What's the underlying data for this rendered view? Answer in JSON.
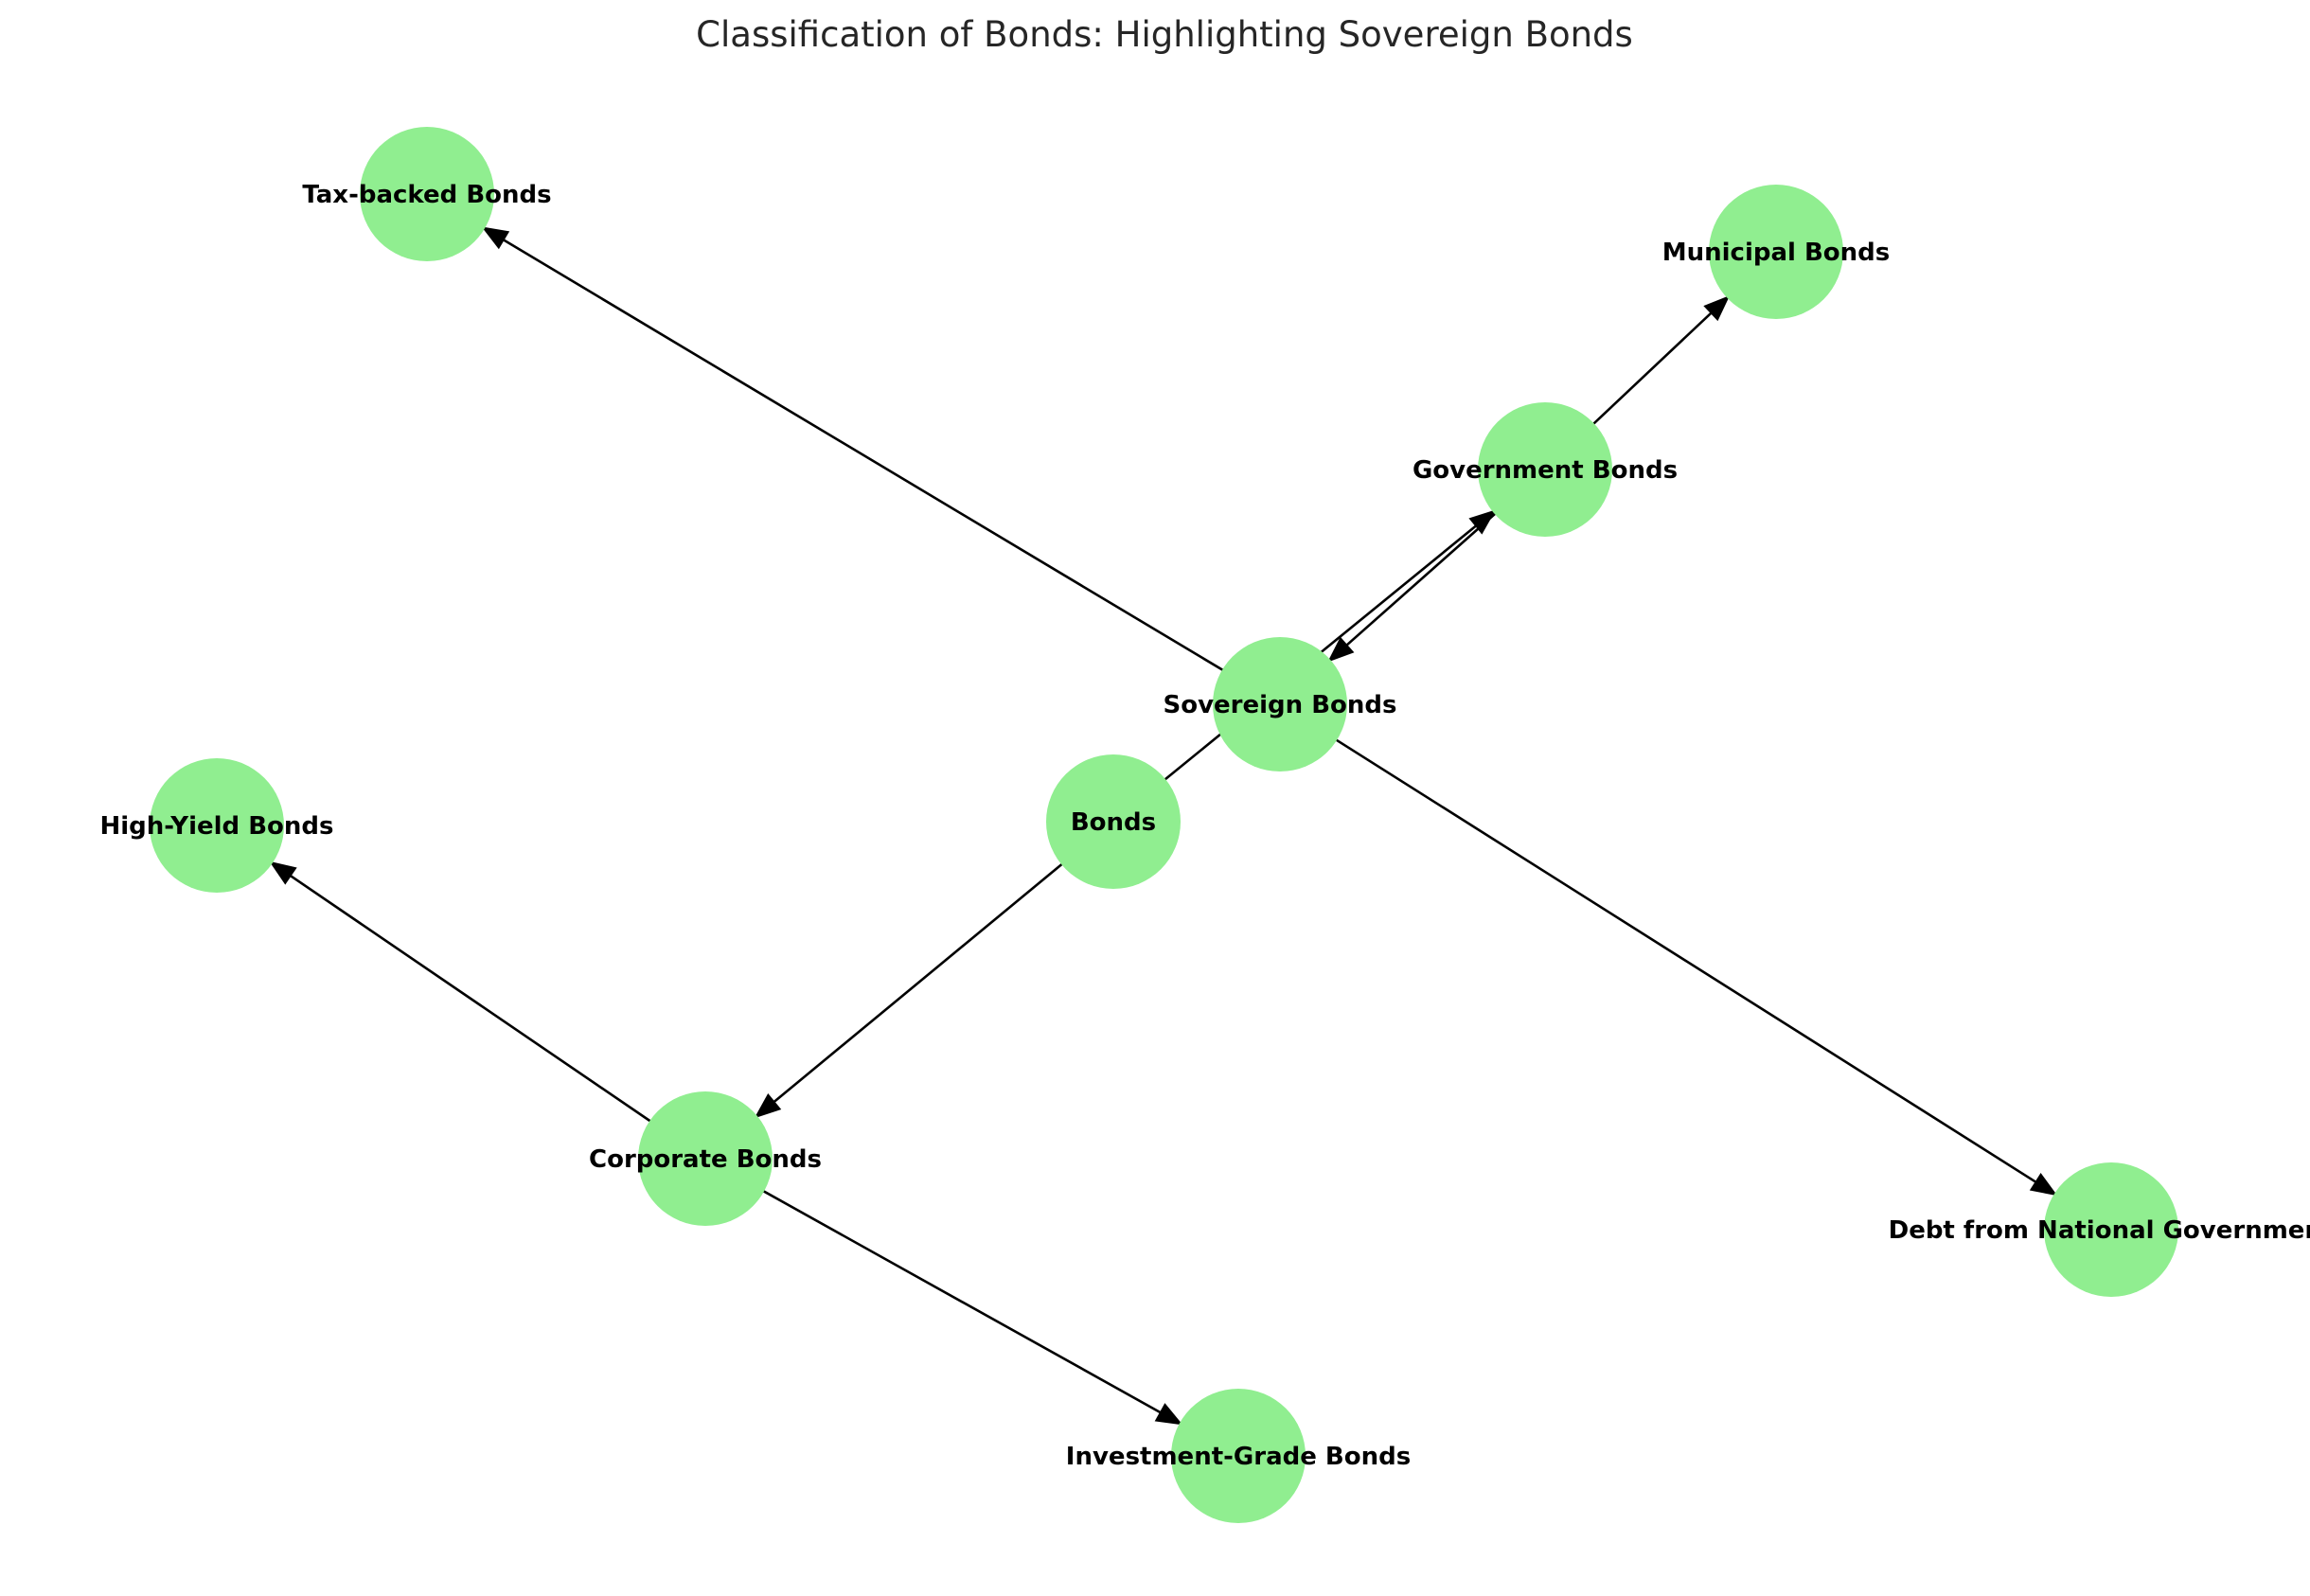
{
  "title": "Classification of Bonds: Highlighting Sovereign Bonds",
  "colors": {
    "node_fill": "#90ee90",
    "edge": "#000000",
    "label": "#000000",
    "title": "#262626",
    "background": "#ffffff"
  },
  "nodes": [
    {
      "id": "bonds",
      "label": "Bonds"
    },
    {
      "id": "sovereign",
      "label": "Sovereign Bonds"
    },
    {
      "id": "government",
      "label": "Government Bonds"
    },
    {
      "id": "municipal",
      "label": "Municipal Bonds"
    },
    {
      "id": "taxbacked",
      "label": "Tax-backed Bonds"
    },
    {
      "id": "national",
      "label": "Debt from National Government"
    },
    {
      "id": "corporate",
      "label": "Corporate Bonds"
    },
    {
      "id": "highyield",
      "label": "High-Yield Bonds"
    },
    {
      "id": "investment",
      "label": "Investment-Grade Bonds"
    }
  ],
  "edges": [
    {
      "from": "bonds",
      "to": "government"
    },
    {
      "from": "bonds",
      "to": "corporate"
    },
    {
      "from": "government",
      "to": "sovereign"
    },
    {
      "from": "government",
      "to": "municipal"
    },
    {
      "from": "sovereign",
      "to": "taxbacked"
    },
    {
      "from": "sovereign",
      "to": "national"
    },
    {
      "from": "corporate",
      "to": "highyield"
    },
    {
      "from": "corporate",
      "to": "investment"
    }
  ]
}
